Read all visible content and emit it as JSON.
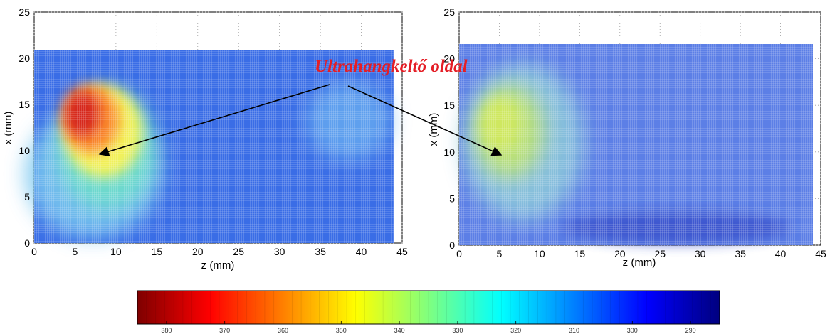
{
  "chart_data": [
    {
      "type": "heatmap",
      "xlabel": "z (mm)",
      "ylabel": "x (mm)",
      "xlim": [
        0,
        45
      ],
      "ylim": [
        0,
        25
      ],
      "xticks": [
        0,
        5,
        10,
        15,
        20,
        25,
        30,
        35,
        40,
        45
      ],
      "yticks": [
        0,
        5,
        10,
        15,
        20,
        25
      ],
      "data_extent": {
        "z": [
          0,
          44
        ],
        "x": [
          0,
          21
        ]
      },
      "grid": true,
      "hotspot": {
        "z": 5.5,
        "x": 13.5,
        "value": 378
      }
    },
    {
      "type": "heatmap",
      "xlabel": "z (mm)",
      "ylabel": "x (mm)",
      "xlim": [
        0,
        45
      ],
      "ylim": [
        0,
        25
      ],
      "xticks": [
        0,
        5,
        10,
        15,
        20,
        25,
        30,
        35,
        40,
        45
      ],
      "yticks": [
        0,
        5,
        10,
        15,
        20,
        25
      ],
      "data_extent": {
        "z": [
          0,
          44
        ],
        "x": [
          0,
          22
        ]
      },
      "grid": true,
      "hotspot": {
        "z": 4.5,
        "x": 14,
        "value": 338
      }
    }
  ],
  "colorbar": {
    "range": [
      385,
      285
    ],
    "ticks": [
      380,
      370,
      360,
      350,
      340,
      330,
      320,
      310,
      300,
      290
    ],
    "colormap": [
      "#7f0000",
      "#ff0000",
      "#ffff00",
      "#00ffff",
      "#0000ff",
      "#00007f"
    ]
  },
  "annotation": {
    "text": "Ultrahangkeltő oldal",
    "color": "#e41e26"
  }
}
